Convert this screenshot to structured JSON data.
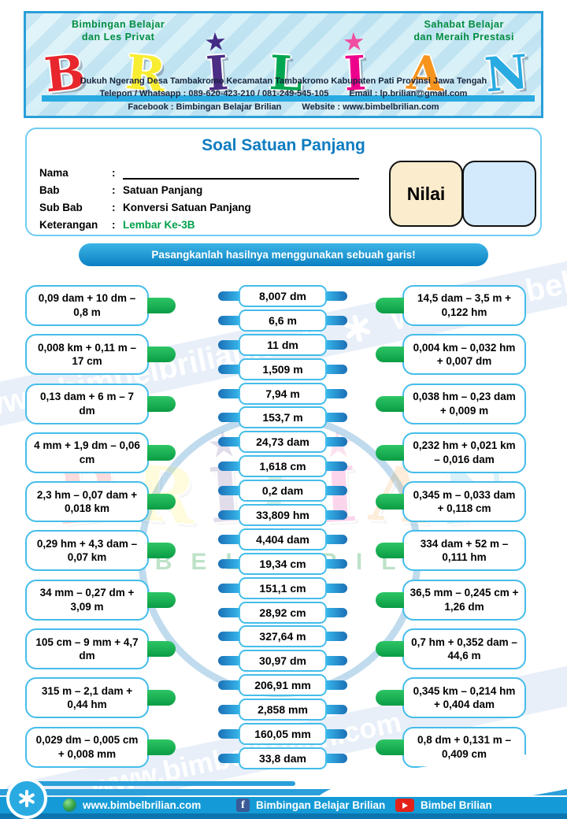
{
  "header": {
    "tagline_left": "Bimbingan Belajar\ndan Les Privat",
    "tagline_right": "Sahabat Belajar\ndan Meraih Prestasi",
    "logo_letters": [
      {
        "ch": "B",
        "color": "#e8262d",
        "rotate": -6
      },
      {
        "ch": "R",
        "color": "#f9ed32",
        "rotate": 5
      },
      {
        "ch": "I",
        "color": "#4b2d84",
        "rotate": -4,
        "star": "#432a85"
      },
      {
        "ch": "L",
        "color": "#00a651",
        "rotate": 3
      },
      {
        "ch": "I",
        "color": "#ec008c",
        "rotate": -3,
        "star": "#f04ea1"
      },
      {
        "ch": "A",
        "color": "#f7941e",
        "rotate": 4
      },
      {
        "ch": "N",
        "color": "#29abe2",
        "rotate": -5
      }
    ],
    "address": "Dukuh Ngerang Desa Tambakromo Kecamatan Tambakromo Kabupaten Pati Provinsi Jawa Tengah",
    "phone": "Telepon / Whatsapp : 089-620-423-210 / 081-249-545-105",
    "email": "Email : lp.brilian@gmail.com",
    "facebook_line": "Facebook : Bimbingan Belajar Brilian",
    "website_line": "Website : www.bimbelbrilian.com"
  },
  "worksheet": {
    "title": "Soal Satuan Panjang",
    "fields": [
      {
        "label": "Nama",
        "value": "",
        "underline": true
      },
      {
        "label": "Bab",
        "value": "Satuan Panjang"
      },
      {
        "label": "Sub Bab",
        "value": "Konversi Satuan Panjang"
      },
      {
        "label": "Keterangan",
        "value": "Lembar Ke-3B",
        "color": "#00a14b"
      }
    ],
    "nilai_label": "Nilai",
    "instruction": "Pasangkanlah hasilnya menggunakan sebuah garis!"
  },
  "matching": {
    "left_questions": [
      "0,09 dam + 10 dm – 0,8 m",
      "0,008 km + 0,11 m – 17 cm",
      "0,13 dam + 6 m – 7 dm",
      "4 mm + 1,9 dm – 0,06 cm",
      "2,3 hm – 0,07 dam + 0,018 km",
      "0,29 hm + 4,3 dam – 0,07 km",
      "34 mm – 0,27 dm + 3,09 m",
      "105 cm – 9 mm + 4,7 dm",
      "315 m – 2,1 dam + 0,44 hm",
      "0,029 dm – 0,005 cm + 0,008 mm"
    ],
    "middle_answers": [
      "8,007 dm",
      "6,6 m",
      "11 dm",
      "1,509 m",
      "7,94 m",
      "153,7 m",
      "24,73 dam",
      "1,618 cm",
      "0,2 dam",
      "33,809 hm",
      "4,404 dam",
      "19,34 cm",
      "151,1 cm",
      "28,92 cm",
      "327,64 m",
      "30,97 dm",
      "206,91 mm",
      "2,858 mm",
      "160,05 mm",
      "33,8 dam"
    ],
    "right_questions": [
      "14,5 dam – 3,5 m + 0,122 hm",
      "0,004 km – 0,032 hm + 0,007 dm",
      "0,038 hm – 0,23 dam + 0,009 m",
      "0,232 hm + 0,021 km – 0,016 dam",
      "0,345 m – 0,033 dam + 0,118 cm",
      "334 dam + 52 m – 0,111 hm",
      "36,5 mm – 0,245 cm + 1,26 dm",
      "0,7 hm + 0,352 dam – 44,6 m",
      "0,345 km – 0,214 hm + 0,404 dam",
      "0,8 dm + 0,131 m – 0,409 cm"
    ]
  },
  "watermark": {
    "text": "www.bimbelbrilian.com",
    "bimbel_text": "BIMBEL BRILIAN"
  },
  "footer": {
    "website": "www.bimbelbrilian.com",
    "facebook": "Bimbingan Belajar Brilian",
    "youtube": "Bimbel Brilian"
  },
  "colors": {
    "accent_blue": "#29abe2",
    "green": "#00a651",
    "box_border": "#45bdea",
    "footer_band": "#149ad6",
    "nilai_bg": "#fbeccd",
    "score_bg": "#d3eafc"
  }
}
